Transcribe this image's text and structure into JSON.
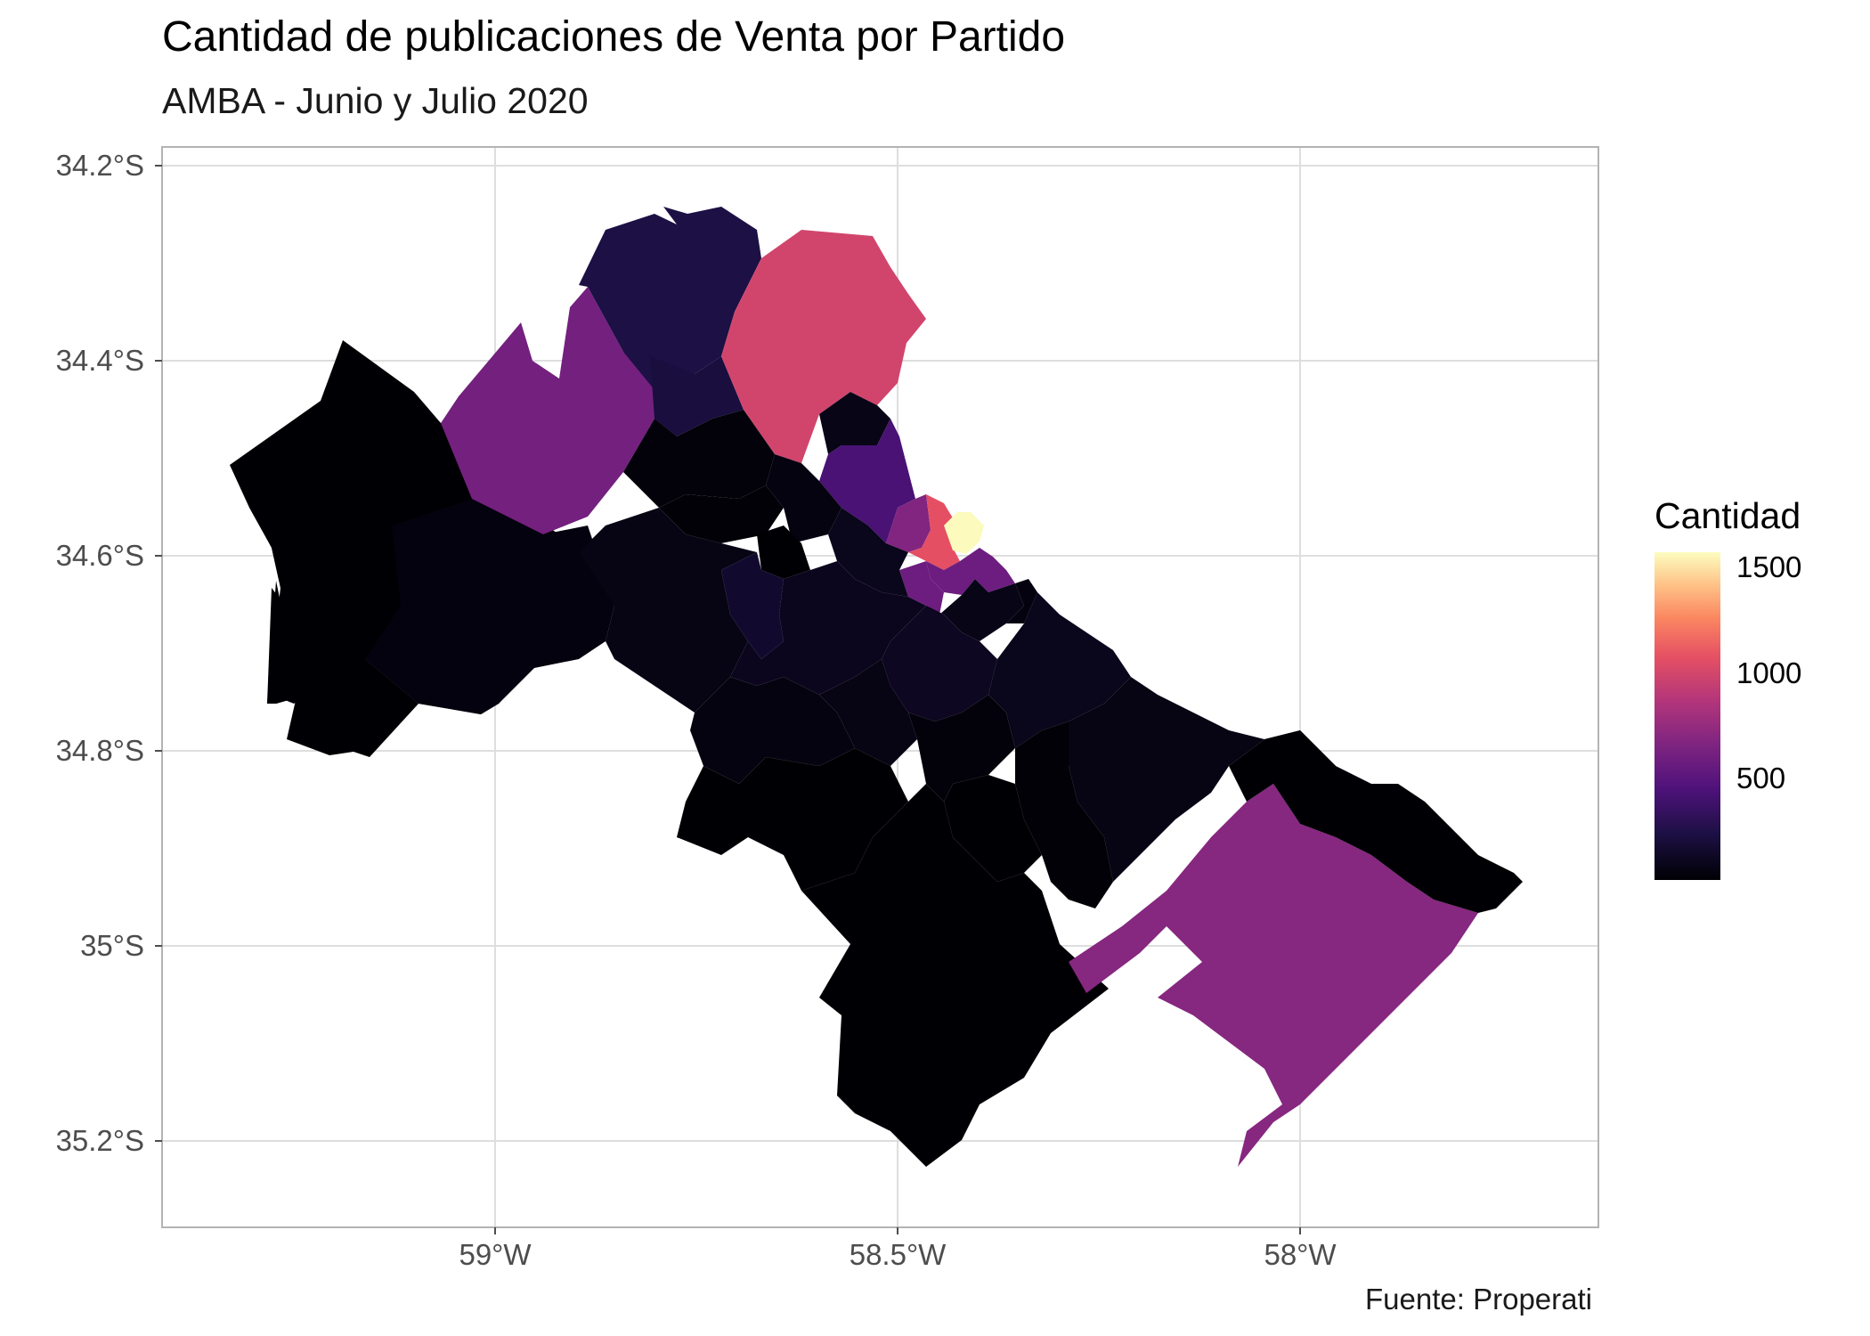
{
  "title": "Cantidad de publicaciones de Venta por Partido",
  "subtitle": "AMBA - Junio y Julio 2020",
  "caption": "Fuente: Properati",
  "legend": {
    "title": "Cantidad",
    "labels": [
      "1500",
      "1000",
      "500"
    ],
    "values": [
      1500,
      1000,
      500
    ],
    "range": [
      20,
      1550
    ],
    "palette": "magma"
  },
  "axes": {
    "y_labels": [
      "34.2°S",
      "34.4°S",
      "34.6°S",
      "34.8°S",
      "35°S",
      "35.2°S"
    ],
    "x_labels": [
      "59°W",
      "58.5°W",
      "58°W"
    ],
    "ylim": [
      -35.28,
      -34.18
    ],
    "xlim": [
      -59.41,
      -57.63
    ]
  },
  "colors": {
    "panel_border": "#b3b3b3",
    "grid": "#dedede",
    "axis_text": "#4d4d4d"
  },
  "map": {
    "regions": [
      {
        "id": "general-rodriguez",
        "value": 10
      },
      {
        "id": "lujan",
        "value": 5
      },
      {
        "id": "marcos-paz",
        "value": 10
      },
      {
        "id": "pilar",
        "value": 550
      },
      {
        "id": "escobar",
        "value": 220
      },
      {
        "id": "campana-edge",
        "value": 200
      },
      {
        "id": "tigre",
        "value": 900
      },
      {
        "id": "san-fernando",
        "value": 80
      },
      {
        "id": "san-isidro",
        "value": 380
      },
      {
        "id": "vicente-lopez",
        "value": 600
      },
      {
        "id": "caba-norte",
        "value": 980
      },
      {
        "id": "caba-centro",
        "value": 1540
      },
      {
        "id": "caba-sur",
        "value": 520
      },
      {
        "id": "malvinas-argentinas",
        "value": 40
      },
      {
        "id": "jose-c-paz",
        "value": 30
      },
      {
        "id": "san-miguel",
        "value": 60
      },
      {
        "id": "moreno",
        "value": 50
      },
      {
        "id": "merlo",
        "value": 70
      },
      {
        "id": "tres-de-febrero",
        "value": 90
      },
      {
        "id": "hurlingham",
        "value": 20
      },
      {
        "id": "moron",
        "value": 150
      },
      {
        "id": "la-matanza",
        "value": 100
      },
      {
        "id": "ezeiza",
        "value": 60
      },
      {
        "id": "esteban-echeverria",
        "value": 70
      },
      {
        "id": "lomas-de-zamora",
        "value": 110
      },
      {
        "id": "lanus",
        "value": 80
      },
      {
        "id": "avellaneda",
        "value": 50
      },
      {
        "id": "quilmes",
        "value": 90
      },
      {
        "id": "almirante-brown",
        "value": 40
      },
      {
        "id": "florencio-varela",
        "value": 30
      },
      {
        "id": "berazategui",
        "value": 70
      },
      {
        "id": "presidente-peron",
        "value": 20
      },
      {
        "id": "san-vicente",
        "value": 10
      },
      {
        "id": "canuelas",
        "value": 10
      },
      {
        "id": "la-plata",
        "value": 620
      },
      {
        "id": "ensenada",
        "value": 10
      },
      {
        "id": "berisso",
        "value": 20
      }
    ]
  }
}
